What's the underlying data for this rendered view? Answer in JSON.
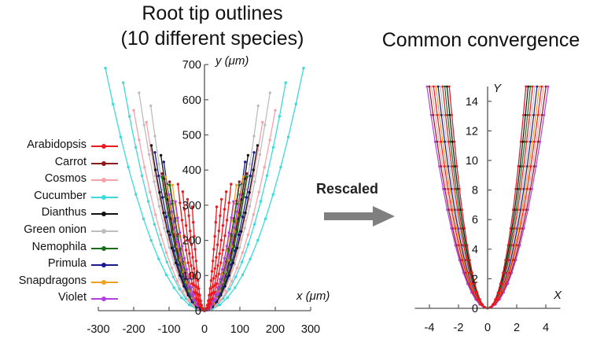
{
  "titles": {
    "left_line1": "Root tip outlines",
    "left_line2": "(10 different species)",
    "right": "Common convergence"
  },
  "arrow": {
    "label": "Rescaled",
    "color": "#7f7f7f"
  },
  "chart_data": [
    {
      "type": "line",
      "title": "Root tip outlines (10 different species)",
      "xlabel": "x (μm)",
      "ylabel": "y (μm)",
      "xlim": [
        -300,
        300
      ],
      "ylim": [
        0,
        700
      ],
      "x_ticks": [
        -300,
        -200,
        -100,
        0,
        100,
        200,
        300
      ],
      "y_ticks": [
        0,
        100,
        200,
        300,
        400,
        500,
        600,
        700
      ],
      "grid": false,
      "legend_position": "left",
      "series": [
        {
          "name": "Arabidopsis",
          "color": "#e8191f",
          "half_width": 75,
          "height": 360
        },
        {
          "name": "Carrot",
          "color": "#8b1a1a",
          "half_width": 120,
          "height": 390
        },
        {
          "name": "Cosmos",
          "color": "#f4a3ab",
          "half_width": 200,
          "height": 570
        },
        {
          "name": "Cucumber",
          "color": "#3cd9d9",
          "half_width": 280,
          "height": 690
        },
        {
          "name": "Dianthus",
          "color": "#111111",
          "half_width": 150,
          "height": 470
        },
        {
          "name": "Green onion",
          "color": "#bdbdbd",
          "half_width": 185,
          "height": 620
        },
        {
          "name": "Nemophila",
          "color": "#1a6b1a",
          "half_width": 120,
          "height": 380
        },
        {
          "name": "Primula",
          "color": "#1a1a8c",
          "half_width": 140,
          "height": 450
        },
        {
          "name": "Snapdragons",
          "color": "#f0a020",
          "half_width": 110,
          "height": 380
        },
        {
          "name": "Violet",
          "color": "#b040e0",
          "half_width": 100,
          "height": 330
        }
      ]
    },
    {
      "type": "line",
      "title": "Common convergence",
      "xlabel": "X",
      "ylabel": "Y",
      "xlim": [
        -5,
        5
      ],
      "ylim": [
        0,
        15
      ],
      "x_ticks": [
        -4,
        -2,
        0,
        2,
        4
      ],
      "y_ticks": [
        0,
        2,
        4,
        6,
        8,
        10,
        12,
        14
      ],
      "grid": false,
      "curve": "Y = X^2 (approx.)",
      "half_width_at_top": 3.4,
      "height": 15
    }
  ]
}
